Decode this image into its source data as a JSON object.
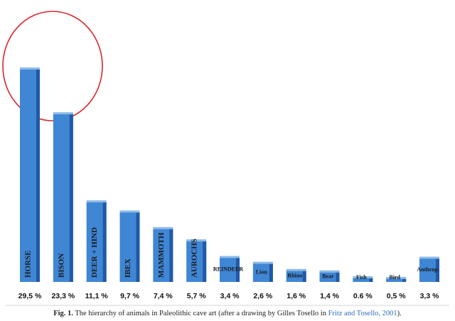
{
  "chart_data": {
    "type": "bar",
    "categories": [
      "HORSE",
      "BISON",
      "DEER + HIND",
      "IBEX",
      "MAMMOTH",
      "AUROCHS",
      "REINDEER",
      "Lion",
      "Rhino",
      "Bear",
      "Fish",
      "Bird",
      "Anthrop."
    ],
    "values": [
      29.5,
      23.3,
      11.1,
      9.7,
      7.4,
      5.7,
      3.4,
      2.6,
      1.6,
      1.4,
      0.6,
      0.5,
      3.3
    ],
    "value_labels": [
      "29,5 %",
      "23,3 %",
      "11,1 %",
      "9,7 %",
      "7,4 %",
      "5,7 %",
      "3,4 %",
      "2,6 %",
      "1,6 %",
      "1,4 %",
      "0.6 %",
      "0,5 %",
      "3,3 %"
    ],
    "color": "#3f86d4",
    "caption": {
      "label": "Fig. 1.",
      "text": "The hierarchy of animals in Paleolithic cave art (after a drawing by Gilles Tosello in ",
      "link": "Fritz and Tosello, 2001",
      "end": ")."
    }
  }
}
